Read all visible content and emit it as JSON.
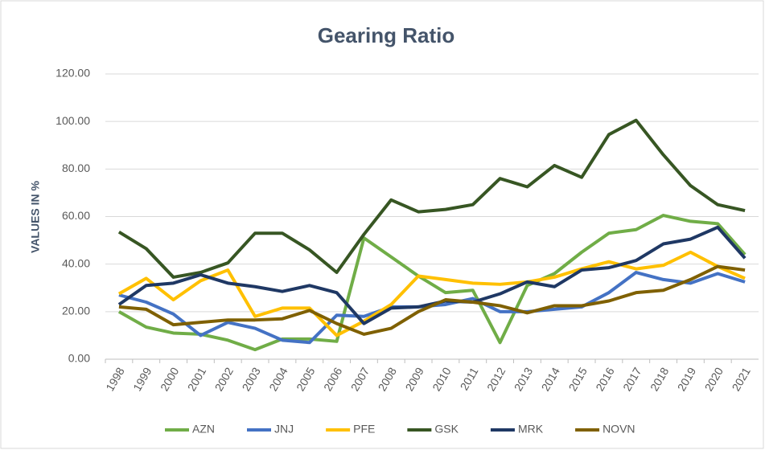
{
  "chart_data": {
    "type": "line",
    "title": "Gearing Ratio",
    "y_label": "VALUES IN %",
    "categories": [
      "1998",
      "1999",
      "2000",
      "2001",
      "2002",
      "2003",
      "2004",
      "2005",
      "2006",
      "2007",
      "2008",
      "2009",
      "2010",
      "2011",
      "2012",
      "2013",
      "2014",
      "2015",
      "2016",
      "2017",
      "2018",
      "2019",
      "2020",
      "2021"
    ],
    "series": [
      {
        "name": "AZN",
        "color": "#70ad47",
        "values": [
          20,
          13.5,
          11,
          10.5,
          8,
          4,
          8.5,
          8.5,
          7.5,
          51,
          43,
          35,
          28,
          29,
          7,
          31,
          36,
          45,
          53,
          54.5,
          60.5,
          58,
          57,
          44
        ]
      },
      {
        "name": "JNJ",
        "color": "#4472c4",
        "values": [
          27,
          24,
          19,
          10,
          15.5,
          13,
          8,
          7,
          18.5,
          18,
          22,
          22,
          23,
          25.5,
          20,
          20,
          21,
          22,
          28,
          36.5,
          33.5,
          32,
          36,
          32.5
        ]
      },
      {
        "name": "PFE",
        "color": "#ffc000",
        "values": [
          27.5,
          34,
          25,
          33,
          37.5,
          18,
          21.5,
          21.5,
          10,
          16,
          23,
          35,
          33.5,
          32,
          31.5,
          32.5,
          34.5,
          38,
          41,
          38,
          39.5,
          45,
          39,
          34
        ]
      },
      {
        "name": "GSK",
        "color": "#375623",
        "values": [
          53.5,
          46.5,
          34.5,
          36.5,
          40.5,
          53,
          53,
          46,
          36.5,
          52.5,
          67,
          62,
          63,
          65,
          76,
          72.5,
          81.5,
          76.5,
          94.5,
          100.5,
          86,
          73,
          65,
          62.5
        ]
      },
      {
        "name": "MRK",
        "color": "#1f3864",
        "values": [
          23,
          31,
          32,
          35.5,
          32,
          30.5,
          28.5,
          31,
          28,
          15,
          21.5,
          22,
          24.5,
          24,
          27.5,
          32.5,
          30.5,
          37.5,
          38.5,
          41.5,
          48.5,
          50.5,
          55.5,
          42.5
        ]
      },
      {
        "name": "NOVN",
        "color": "#7f6000",
        "values": [
          22,
          21,
          14.5,
          15.5,
          16.5,
          16.5,
          17,
          20.5,
          15,
          10.5,
          13,
          20,
          25,
          24,
          22.5,
          19.5,
          22.5,
          22.5,
          24.5,
          28,
          29,
          33.5,
          39,
          37.5
        ]
      }
    ],
    "ylim": [
      0,
      120
    ],
    "yticks": [
      {
        "value": 0,
        "label": "0.00"
      },
      {
        "value": 20,
        "label": "20.00"
      },
      {
        "value": 40,
        "label": "40.00"
      },
      {
        "value": 60,
        "label": "60.00"
      },
      {
        "value": 80,
        "label": "80.00"
      },
      {
        "value": 100,
        "label": "100.00"
      },
      {
        "value": 120,
        "label": "120.00"
      }
    ],
    "grid": true,
    "legend": "bottom"
  }
}
